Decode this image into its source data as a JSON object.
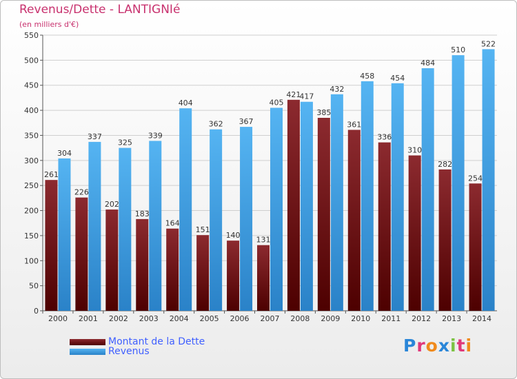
{
  "header": {
    "title": "Revenus/Dette - LANTIGNIé",
    "subtitle": "(en milliers d'€)"
  },
  "legend": {
    "dette_label": "Montant de la Dette",
    "revenus_label": "Revenus"
  },
  "logo": {
    "text": "Proxiti"
  },
  "colors": {
    "dette": "#7a1a1f",
    "revenus": "#3aa0e8",
    "title": "#c8316e",
    "legend_text": "#4060ff"
  },
  "chart_data": {
    "type": "bar",
    "categories": [
      "2000",
      "2001",
      "2002",
      "2003",
      "2004",
      "2005",
      "2006",
      "2007",
      "2008",
      "2009",
      "2010",
      "2011",
      "2012",
      "2013",
      "2014"
    ],
    "series": [
      {
        "name": "Montant de la Dette",
        "values": [
          261,
          226,
          202,
          183,
          164,
          151,
          140,
          131,
          421,
          385,
          361,
          336,
          310,
          282,
          254
        ]
      },
      {
        "name": "Revenus",
        "values": [
          304,
          337,
          325,
          339,
          404,
          362,
          367,
          405,
          417,
          432,
          458,
          454,
          484,
          510,
          522
        ]
      }
    ],
    "yticks": [
      0,
      50,
      100,
      150,
      200,
      250,
      300,
      350,
      400,
      450,
      500,
      550
    ],
    "ylim": [
      0,
      550
    ],
    "grid": true,
    "legend_position": "bottom-left"
  }
}
